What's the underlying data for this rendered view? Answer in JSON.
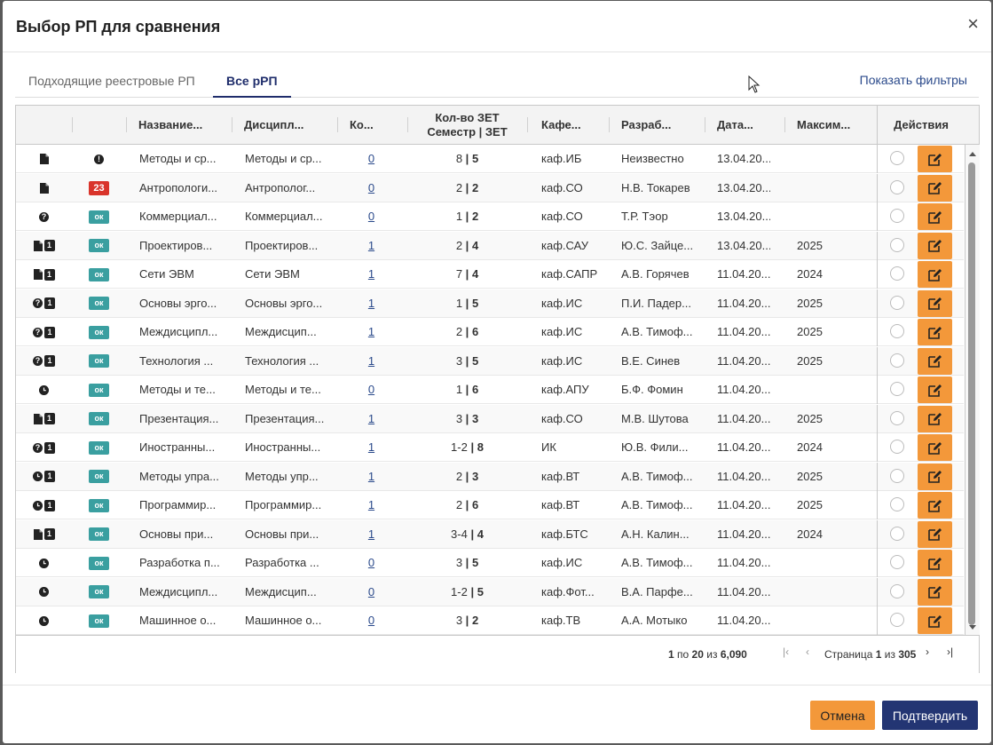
{
  "modal": {
    "title": "Выбор РП для сравнения",
    "close": "×"
  },
  "tabs": [
    {
      "label": "Подходящие реестровые РП"
    },
    {
      "label": "Все рРП"
    }
  ],
  "filters_link": "Показать фильтры",
  "columns": {
    "name": "Название...",
    "discipline": "Дисципл...",
    "count": "Ко...",
    "zet_line1": "Кол-во ЗЕТ",
    "zet_line2": "Семестр | ЗЕТ",
    "dept": "Кафе...",
    "developer": "Разраб...",
    "date": "Дата...",
    "max": "Максим...",
    "actions": "Действия"
  },
  "rows": [
    {
      "icons": [
        "doc"
      ],
      "num": "",
      "badge": "warn",
      "badge_text": "!",
      "name": "Методы и ср...",
      "discipline": "Методы и ср...",
      "count": "0",
      "sem": "8",
      "zet": "5",
      "dept": "каф.ИБ",
      "developer": "Неизвестно",
      "date": "13.04.20...",
      "max": ""
    },
    {
      "icons": [
        "doc"
      ],
      "num": "",
      "badge": "red",
      "badge_text": "23",
      "name": "Антропологи...",
      "discipline": "Антрополог...",
      "count": "0",
      "sem": "2",
      "zet": "2",
      "dept": "каф.СО",
      "developer": "Н.В. Токарев",
      "date": "13.04.20...",
      "max": ""
    },
    {
      "icons": [
        "q"
      ],
      "num": "",
      "badge": "ok",
      "badge_text": "ок",
      "name": "Коммерциал...",
      "discipline": "Коммерциал...",
      "count": "0",
      "sem": "1",
      "zet": "2",
      "dept": "каф.СО",
      "developer": "Т.Р. Тэор",
      "date": "13.04.20...",
      "max": ""
    },
    {
      "icons": [
        "doc"
      ],
      "num": "1",
      "badge": "ok",
      "badge_text": "ок",
      "name": "Проектиров...",
      "discipline": "Проектиров...",
      "count": "1",
      "sem": "2",
      "zet": "4",
      "dept": "каф.САУ",
      "developer": "Ю.С. Зайце...",
      "date": "13.04.20...",
      "max": "2025"
    },
    {
      "icons": [
        "doc"
      ],
      "num": "1",
      "badge": "ok",
      "badge_text": "ок",
      "name": "Сети ЭВМ",
      "discipline": "Сети ЭВМ",
      "count": "1",
      "sem": "7",
      "zet": "4",
      "dept": "каф.САПР",
      "developer": "А.В. Горячев",
      "date": "11.04.20...",
      "max": "2024"
    },
    {
      "icons": [
        "q"
      ],
      "num": "1",
      "badge": "ok",
      "badge_text": "ок",
      "name": "Основы эрго...",
      "discipline": "Основы эрго...",
      "count": "1",
      "sem": "1",
      "zet": "5",
      "dept": "каф.ИС",
      "developer": "П.И. Падер...",
      "date": "11.04.20...",
      "max": "2025"
    },
    {
      "icons": [
        "q"
      ],
      "num": "1",
      "badge": "ok",
      "badge_text": "ок",
      "name": "Междисципл...",
      "discipline": "Междисцип...",
      "count": "1",
      "sem": "2",
      "zet": "6",
      "dept": "каф.ИС",
      "developer": "А.В. Тимоф...",
      "date": "11.04.20...",
      "max": "2025"
    },
    {
      "icons": [
        "q"
      ],
      "num": "1",
      "badge": "ok",
      "badge_text": "ок",
      "name": "Технология ...",
      "discipline": "Технология ...",
      "count": "1",
      "sem": "3",
      "zet": "5",
      "dept": "каф.ИС",
      "developer": "В.Е. Синев",
      "date": "11.04.20...",
      "max": "2025"
    },
    {
      "icons": [
        "clock"
      ],
      "num": "",
      "badge": "ok",
      "badge_text": "ок",
      "name": "Методы и те...",
      "discipline": "Методы и те...",
      "count": "0",
      "sem": "1",
      "zet": "6",
      "dept": "каф.АПУ",
      "developer": "Б.Ф. Фомин",
      "date": "11.04.20...",
      "max": ""
    },
    {
      "icons": [
        "doc"
      ],
      "num": "1",
      "badge": "ok",
      "badge_text": "ок",
      "name": "Презентация...",
      "discipline": "Презентация...",
      "count": "1",
      "sem": "3",
      "zet": "3",
      "dept": "каф.СО",
      "developer": "М.В. Шутова",
      "date": "11.04.20...",
      "max": "2025"
    },
    {
      "icons": [
        "q"
      ],
      "num": "1",
      "badge": "ok",
      "badge_text": "ок",
      "name": "Иностранны...",
      "discipline": "Иностранны...",
      "count": "1",
      "sem": "1-2",
      "zet": "8",
      "dept": "ИК",
      "developer": "Ю.В. Фили...",
      "date": "11.04.20...",
      "max": "2024"
    },
    {
      "icons": [
        "clock"
      ],
      "num": "1",
      "badge": "ok",
      "badge_text": "ок",
      "name": "Методы упра...",
      "discipline": "Методы упр...",
      "count": "1",
      "sem": "2",
      "zet": "3",
      "dept": "каф.ВТ",
      "developer": "А.В. Тимоф...",
      "date": "11.04.20...",
      "max": "2025"
    },
    {
      "icons": [
        "clock"
      ],
      "num": "1",
      "badge": "ok",
      "badge_text": "ок",
      "name": "Программир...",
      "discipline": "Программир...",
      "count": "1",
      "sem": "2",
      "zet": "6",
      "dept": "каф.ВТ",
      "developer": "А.В. Тимоф...",
      "date": "11.04.20...",
      "max": "2025"
    },
    {
      "icons": [
        "doc"
      ],
      "num": "1",
      "badge": "ok",
      "badge_text": "ок",
      "name": "Основы при...",
      "discipline": "Основы при...",
      "count": "1",
      "sem": "3-4",
      "zet": "4",
      "dept": "каф.БТС",
      "developer": "А.Н. Калин...",
      "date": "11.04.20...",
      "max": "2024"
    },
    {
      "icons": [
        "clock"
      ],
      "num": "",
      "badge": "ok",
      "badge_text": "ок",
      "name": "Разработка п...",
      "discipline": "Разработка ...",
      "count": "0",
      "sem": "3",
      "zet": "5",
      "dept": "каф.ИС",
      "developer": "А.В. Тимоф...",
      "date": "11.04.20...",
      "max": ""
    },
    {
      "icons": [
        "clock"
      ],
      "num": "",
      "badge": "ok",
      "badge_text": "ок",
      "name": "Междисципл...",
      "discipline": "Междисцип...",
      "count": "0",
      "sem": "1-2",
      "zet": "5",
      "dept": "каф.Фот...",
      "developer": "В.А. Парфе...",
      "date": "11.04.20...",
      "max": ""
    },
    {
      "icons": [
        "clock"
      ],
      "num": "",
      "badge": "ok",
      "badge_text": "ок",
      "name": "Машинное о...",
      "discipline": "Машинное о...",
      "count": "0",
      "sem": "3",
      "zet": "2",
      "dept": "каф.ТВ",
      "developer": "А.А. Мотыко",
      "date": "11.04.20...",
      "max": ""
    }
  ],
  "pagination": {
    "from": "1",
    "sep1": "по",
    "to": "20",
    "sep2": "из",
    "total": "6,090",
    "page_label": "Страница",
    "page": "1",
    "of_label": "из",
    "pages": "305"
  },
  "footer": {
    "cancel": "Отмена",
    "confirm": "Подтвердить"
  },
  "colors": {
    "accent_orange": "#f3983a",
    "primary_navy": "#233573",
    "ok_teal": "#3a9fa0",
    "alert_red": "#d9342b"
  }
}
